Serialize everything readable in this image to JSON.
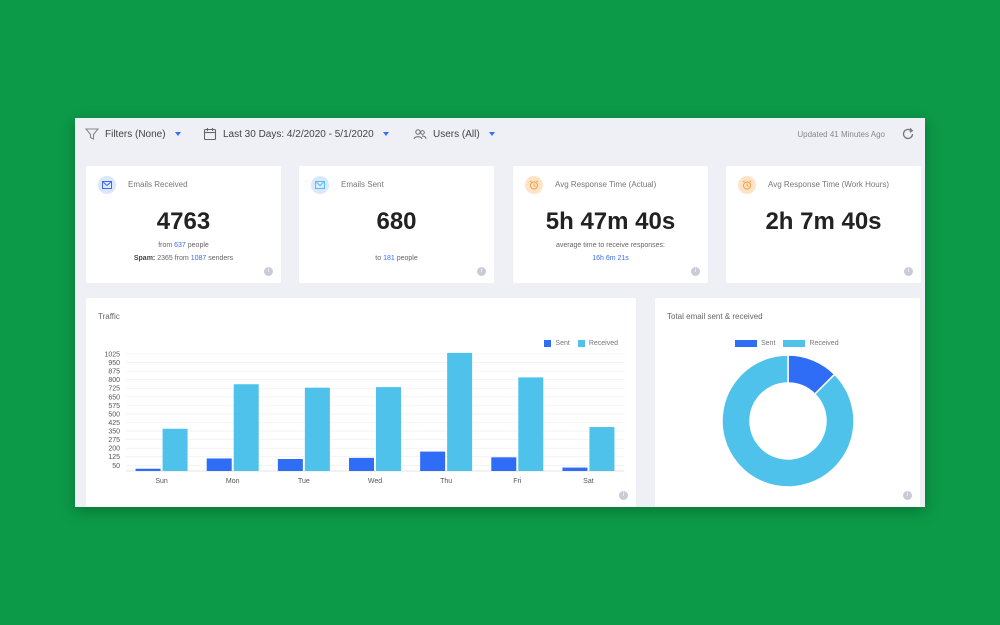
{
  "toolbar": {
    "filters_label": "Filters (None)",
    "date_range_label": "Last 30 Days: 4/2/2020 - 5/1/2020",
    "users_label": "Users (All)",
    "updated_text": "Updated 41 Minutes Ago"
  },
  "kpis": {
    "received": {
      "title": "Emails Received",
      "value": "4763",
      "line1_prefix": "from ",
      "line1_count": "637",
      "line1_suffix": " people",
      "line2_label": "Spam:",
      "line2_value": " 2365 from ",
      "line2_count": "1087",
      "line2_suffix": " senders"
    },
    "sent": {
      "title": "Emails Sent",
      "value": "680",
      "line1_prefix": "to ",
      "line1_count": "181",
      "line1_suffix": " people"
    },
    "avg_actual": {
      "title": "Avg Response Time (Actual)",
      "value": "5h 47m 40s",
      "line1": "average time to receive responses:",
      "line2": "16h 6m 21s"
    },
    "avg_work": {
      "title": "Avg Response Time (Work Hours)",
      "value": "2h 7m 40s"
    }
  },
  "info_label": "i",
  "traffic": {
    "title": "Traffic",
    "legend": [
      "Sent",
      "Received"
    ]
  },
  "donut": {
    "title": "Total email sent & received",
    "legend": [
      "Sent",
      "Received"
    ]
  },
  "colors": {
    "sent": "#2f6df6",
    "received": "#4ec2ea",
    "accent": "#3b6cf6",
    "email_icon_bg": "#dde7fb",
    "clock_icon_bg": "#fde4c8"
  },
  "chart_data": [
    {
      "type": "bar",
      "title": "Traffic",
      "categories": [
        "Sun",
        "Mon",
        "Tue",
        "Wed",
        "Thu",
        "Fri",
        "Sat"
      ],
      "series": [
        {
          "name": "Sent",
          "values": [
            20,
            110,
            105,
            115,
            170,
            120,
            30
          ]
        },
        {
          "name": "Received",
          "values": [
            370,
            760,
            730,
            735,
            1035,
            820,
            385
          ]
        }
      ],
      "yticks": [
        1025,
        950,
        875,
        800,
        725,
        650,
        575,
        500,
        425,
        350,
        275,
        200,
        125,
        50
      ],
      "ylim": [
        0,
        1025
      ],
      "grid": true,
      "legend": "top-right"
    },
    {
      "type": "pie",
      "title": "Total email sent & received",
      "categories": [
        "Sent",
        "Received"
      ],
      "values": [
        680,
        4763
      ],
      "legend": "top"
    }
  ]
}
